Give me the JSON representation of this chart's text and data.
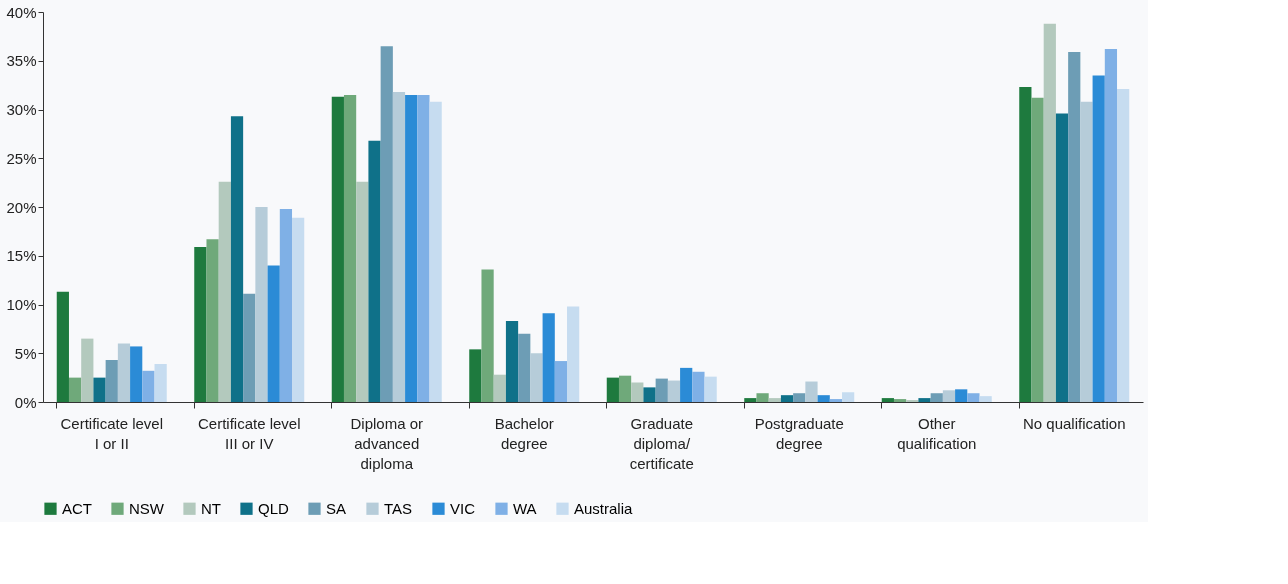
{
  "chart_data": {
    "type": "bar",
    "categories": [
      "Certificate level\nI or II",
      "Certificate level\nIII or IV",
      "Diploma or\nadvanced\ndiploma",
      "Bachelor\ndegree",
      "Graduate\ndiploma/\ncertificate",
      "Postgraduate\ndegree",
      "Other\nqualification",
      "No qualification"
    ],
    "series": [
      {
        "name": "ACT",
        "color": "#1e7a3e",
        "values": [
          11.3,
          15.9,
          31.3,
          5.4,
          2.5,
          0.4,
          0.4,
          32.3
        ]
      },
      {
        "name": "NSW",
        "color": "#6fa97a",
        "values": [
          2.5,
          16.7,
          31.5,
          13.6,
          2.7,
          0.9,
          0.3,
          31.2
        ]
      },
      {
        "name": "NT",
        "color": "#b3c9bd",
        "values": [
          6.5,
          22.6,
          22.6,
          2.8,
          2.0,
          0.4,
          0.2,
          38.8
        ]
      },
      {
        "name": "QLD",
        "color": "#0f7189",
        "values": [
          2.5,
          29.3,
          26.8,
          8.3,
          1.5,
          0.7,
          0.4,
          29.6
        ]
      },
      {
        "name": "SA",
        "color": "#6d9db5",
        "values": [
          4.3,
          11.1,
          36.5,
          7.0,
          2.4,
          0.9,
          0.9,
          35.9
        ]
      },
      {
        "name": "TAS",
        "color": "#b6ccd9",
        "values": [
          6.0,
          20.0,
          31.8,
          5.0,
          2.2,
          2.1,
          1.2,
          30.8
        ]
      },
      {
        "name": "VIC",
        "color": "#2b8bd6",
        "values": [
          5.7,
          14.0,
          31.5,
          9.1,
          3.5,
          0.7,
          1.3,
          33.5
        ]
      },
      {
        "name": "WA",
        "color": "#7fb0e6",
        "values": [
          3.2,
          19.8,
          31.5,
          4.2,
          3.1,
          0.3,
          0.9,
          36.2
        ]
      },
      {
        "name": "Australia",
        "color": "#c6dcf0",
        "values": [
          3.9,
          18.9,
          30.8,
          9.8,
          2.6,
          1.0,
          0.6,
          32.1
        ]
      }
    ],
    "ylim": [
      0,
      40
    ],
    "yticks": [
      {
        "value": 0,
        "label": "0%"
      },
      {
        "value": 5,
        "label": "5%"
      },
      {
        "value": 10,
        "label": "10%"
      },
      {
        "value": 15,
        "label": "15%"
      },
      {
        "value": 20,
        "label": "20%"
      },
      {
        "value": 25,
        "label": "25%"
      },
      {
        "value": 30,
        "label": "30%"
      },
      {
        "value": 35,
        "label": "35%"
      },
      {
        "value": 40,
        "label": "40%"
      }
    ],
    "grid": false,
    "legend": "bottom"
  }
}
